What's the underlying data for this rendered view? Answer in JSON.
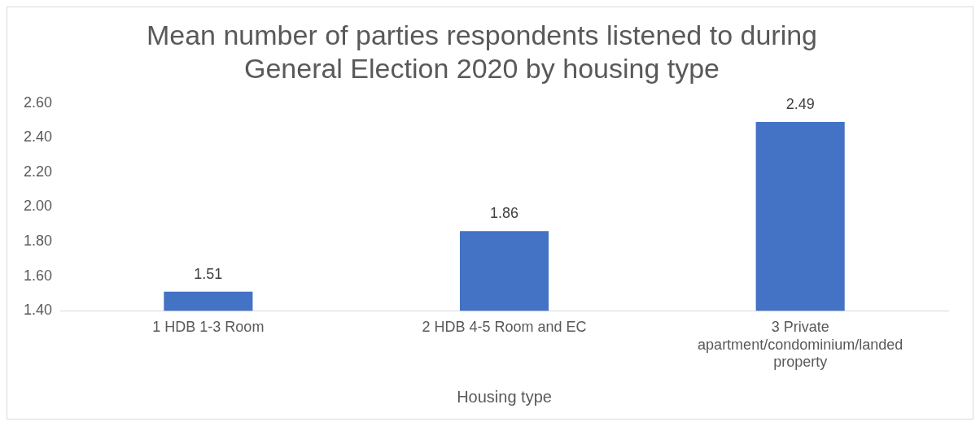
{
  "chart_data": {
    "type": "bar",
    "title": "Mean number of parties respondents listened to during General Election 2020 by housing type",
    "xlabel": "Housing type",
    "categories": [
      "1 HDB 1-3 Room",
      "2 HDB 4-5 Room and EC",
      "3 Private apartment/condominium/landed property"
    ],
    "values": [
      1.51,
      1.86,
      2.49
    ],
    "color": "#4472c4",
    "ylim": [
      1.4,
      2.6
    ],
    "yticks": [
      {
        "value": 1.4,
        "label": "1.40"
      },
      {
        "value": 1.6,
        "label": "1.60"
      },
      {
        "value": 1.8,
        "label": "1.80"
      },
      {
        "value": 2.0,
        "label": "2.00"
      },
      {
        "value": 2.2,
        "label": "2.20"
      },
      {
        "value": 2.4,
        "label": "2.40"
      },
      {
        "value": 2.6,
        "label": "2.60"
      }
    ],
    "grid": false,
    "legend": false,
    "data_labels": true
  }
}
